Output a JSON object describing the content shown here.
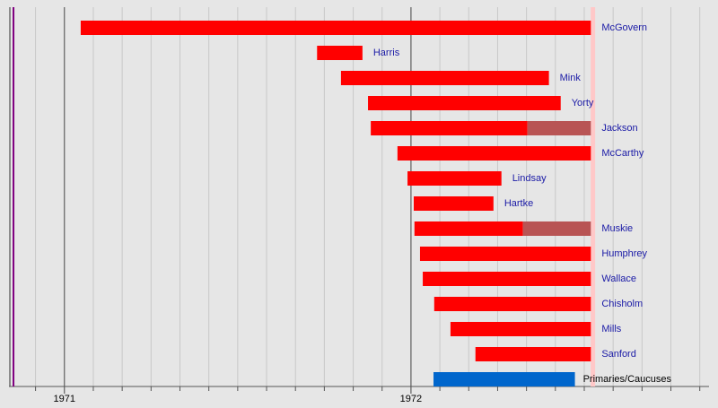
{
  "chart_data": {
    "type": "timeline",
    "xlim": [
      1970.84,
      1972.86
    ],
    "xticks": [
      1971,
      1972
    ],
    "minor_divisions": 12,
    "grid": true,
    "color": "#ff0000",
    "withdrawn_color": "#b85454",
    "label_color": "#1a1aa6",
    "bars": [
      {
        "name": "McGovern",
        "start": 1971.047,
        "end": 1972.519
      },
      {
        "name": "Harris",
        "start": 1971.729,
        "end": 1971.86
      },
      {
        "name": "Mink",
        "start": 1971.798,
        "end": 1972.398
      },
      {
        "name": "Yorty",
        "start": 1971.876,
        "end": 1972.432
      },
      {
        "name": "Jackson",
        "start": 1971.884,
        "end": 1972.336,
        "withdrawn_end": 1972.519
      },
      {
        "name": "McCarthy",
        "start": 1971.961,
        "end": 1972.519
      },
      {
        "name": "Lindsay",
        "start": 1971.99,
        "end": 1972.261
      },
      {
        "name": "Hartke",
        "start": 1972.008,
        "end": 1972.238
      },
      {
        "name": "Muskie",
        "start": 1972.01,
        "end": 1972.323,
        "withdrawn_end": 1972.519
      },
      {
        "name": "Humphrey",
        "start": 1972.026,
        "end": 1972.519
      },
      {
        "name": "Wallace",
        "start": 1972.034,
        "end": 1972.519
      },
      {
        "name": "Chisholm",
        "start": 1972.067,
        "end": 1972.519
      },
      {
        "name": "Mills",
        "start": 1972.114,
        "end": 1972.519
      },
      {
        "name": "Sanford",
        "start": 1972.186,
        "end": 1972.519
      }
    ],
    "period": {
      "name": "Primaries/Caucuses",
      "start": 1972.065,
      "end": 1972.473,
      "color": "#0066cc"
    },
    "markers": [
      {
        "value": 1970.853,
        "color": "#800080"
      },
      {
        "value": 1972.525,
        "color": "#ffc8c8"
      }
    ]
  }
}
